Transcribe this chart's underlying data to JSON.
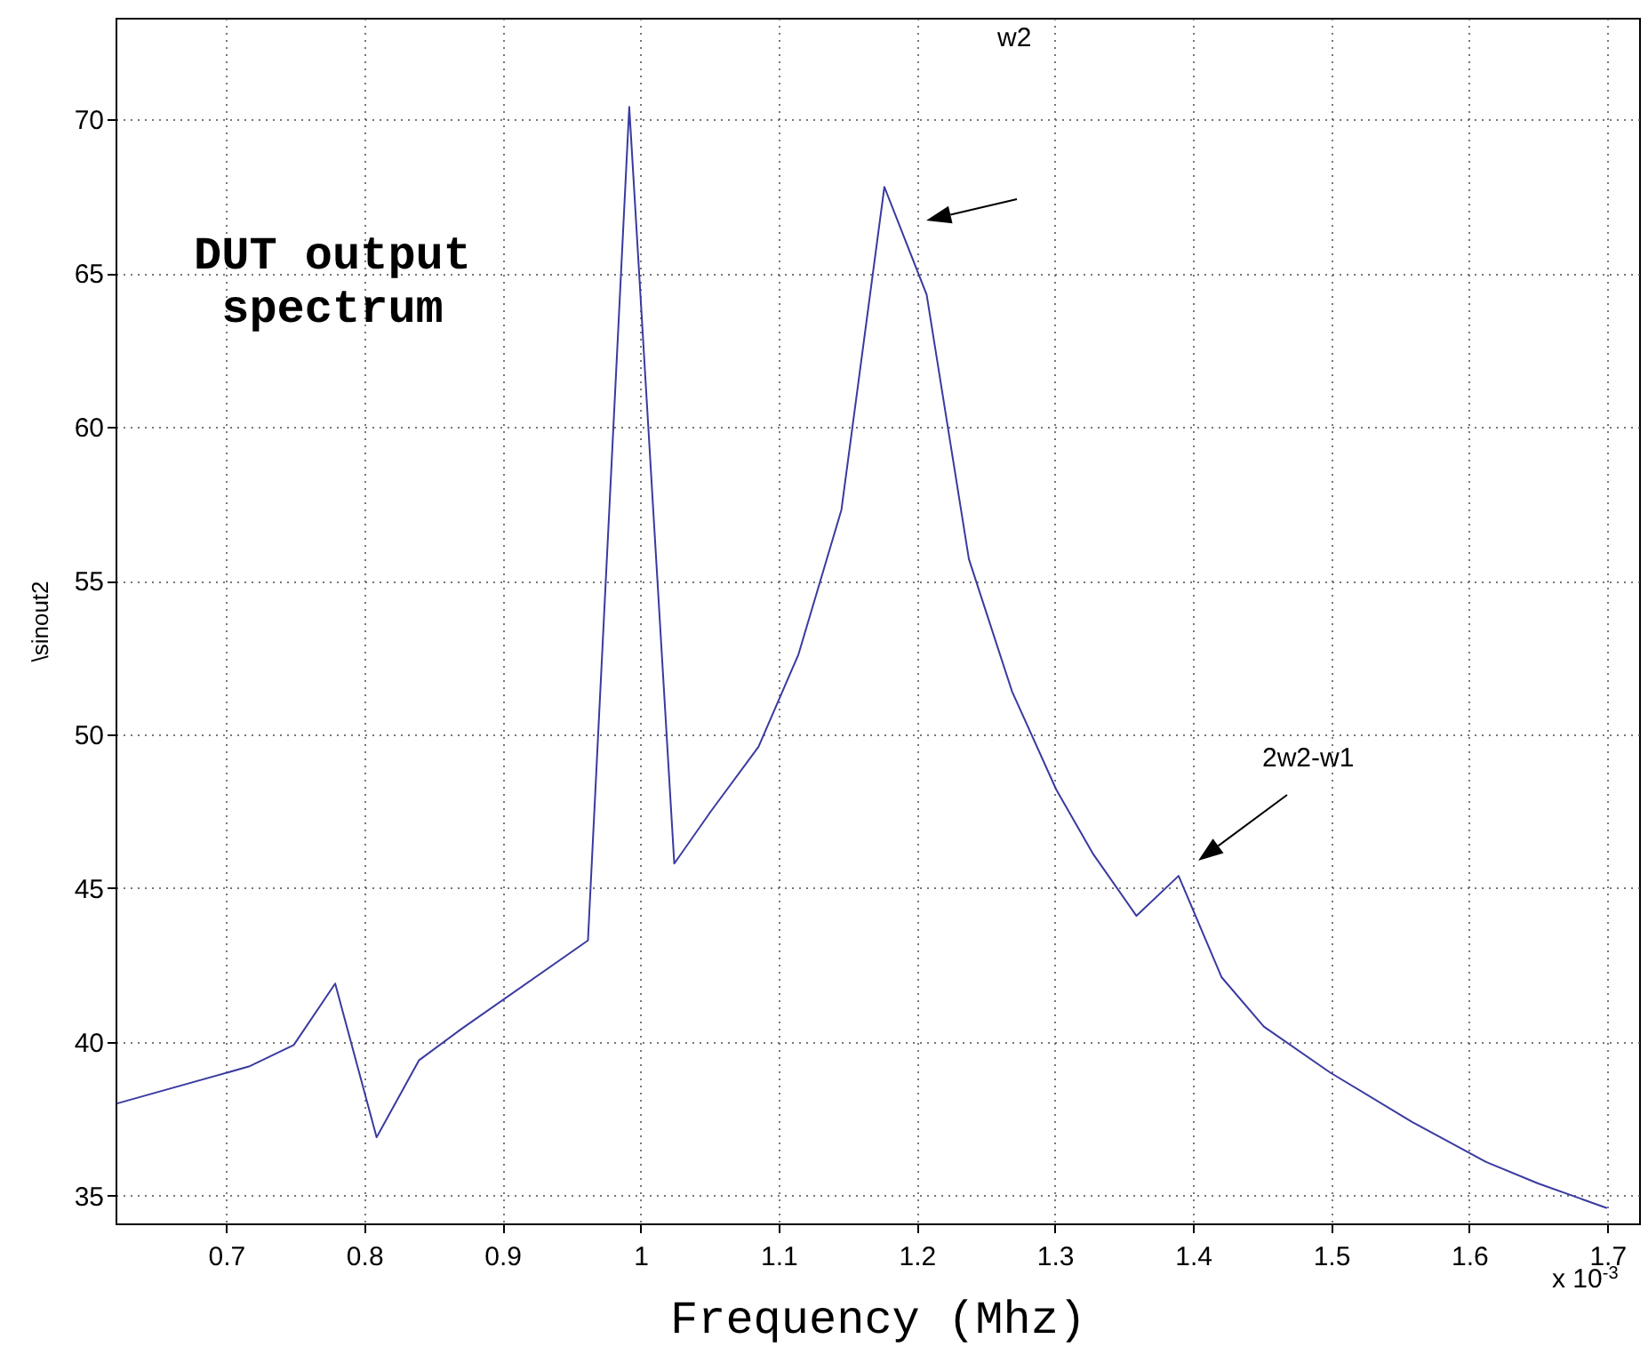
{
  "chart_data": {
    "type": "line",
    "title": "DUT output spectrum",
    "xlabel": "Frequency (Mhz)",
    "ylabel": "\\sinout2",
    "x": [
      0.621,
      0.7165,
      0.749,
      0.779,
      0.809,
      0.8396,
      0.8696,
      0.962,
      0.9919,
      1.0245,
      1.051,
      1.0855,
      1.1144,
      1.1455,
      1.1766,
      1.2072,
      1.2378,
      1.269,
      1.3011,
      1.3279,
      1.3591,
      1.3896,
      1.4208,
      1.4513,
      1.4995,
      1.5586,
      1.6122,
      1.6498,
      1.6997
    ],
    "series": [
      {
        "color": "#3a3aa0",
        "values": [
          38.0,
          39.2,
          39.9,
          41.9,
          36.9,
          39.4,
          40.4,
          43.3,
          70.4,
          45.8,
          47.5,
          49.6,
          52.6,
          57.3,
          67.8,
          64.3,
          55.7,
          51.4,
          48.2,
          46.1,
          44.1,
          45.4,
          42.1,
          40.5,
          39.0,
          37.4,
          36.1,
          35.4,
          34.6
        ]
      }
    ],
    "annotations": [
      "w2",
      "2w2-w1",
      "x 10$^{-3}$"
    ],
    "xlim": [
      0.62,
      1.723
    ],
    "ylim": [
      34.1,
      73.3
    ],
    "xticks": [
      0.7,
      0.8,
      0.9,
      1,
      1.1,
      1.2,
      1.3,
      1.4,
      1.5,
      1.6,
      1.7
    ],
    "yticks": [
      35,
      40,
      45,
      50,
      55,
      60,
      65,
      70
    ],
    "grid": true,
    "line_style": "solid",
    "marker": "none"
  }
}
